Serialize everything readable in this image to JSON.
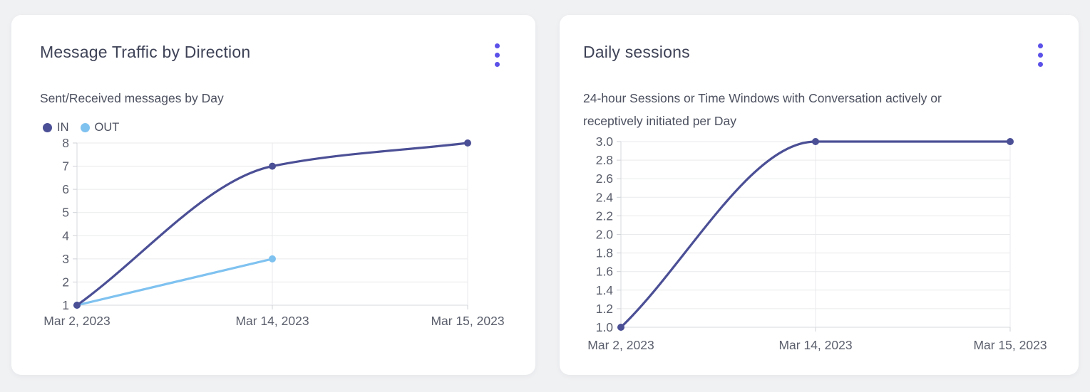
{
  "colors": {
    "accent": "#5b50e8",
    "series_in": "#4b4f95",
    "series_out": "#7fc2f0",
    "page_background": "#f0f1f3",
    "card_background": "#ffffff"
  },
  "cards": [
    {
      "title": "Message Traffic by Direction",
      "subtitle": "Sent/Received messages by Day",
      "menu_icon": "kebab-menu-icon"
    },
    {
      "title": "Daily sessions",
      "subtitle": "24-hour Sessions or Time Windows with Conversation actively or receptively initiated per Day",
      "menu_icon": "kebab-menu-icon"
    }
  ],
  "chart_data": [
    {
      "type": "line",
      "title": "Message Traffic by Direction",
      "subtitle": "Sent/Received messages by Day",
      "categories": [
        "Mar 2, 2023",
        "Mar 14, 2023",
        "Mar 15, 2023"
      ],
      "series": [
        {
          "name": "IN",
          "values": [
            1,
            7,
            8
          ],
          "color": "#4b4f95"
        },
        {
          "name": "OUT",
          "values": [
            1,
            3,
            null
          ],
          "color": "#7fc2f0"
        }
      ],
      "ylim": [
        1,
        8
      ],
      "y_ticks": [
        1,
        2,
        3,
        4,
        5,
        6,
        7,
        8
      ],
      "y_tick_decimals": 0,
      "grid": true,
      "legend": true,
      "legend_position": "top-left",
      "curve": "monotone"
    },
    {
      "type": "line",
      "title": "Daily sessions",
      "subtitle": "24-hour Sessions or Time Windows with Conversation actively or receptively initiated per Day",
      "categories": [
        "Mar 2, 2023",
        "Mar 14, 2023",
        "Mar 15, 2023"
      ],
      "series": [
        {
          "values": [
            1,
            3,
            3
          ],
          "color": "#4b4f95"
        }
      ],
      "ylim": [
        1,
        3
      ],
      "y_ticks": [
        1.0,
        1.2,
        1.4,
        1.6,
        1.8,
        2.0,
        2.2,
        2.4,
        2.6,
        2.8,
        3.0
      ],
      "y_tick_decimals": 1,
      "grid": true,
      "legend": false,
      "curve": "monotone"
    }
  ]
}
